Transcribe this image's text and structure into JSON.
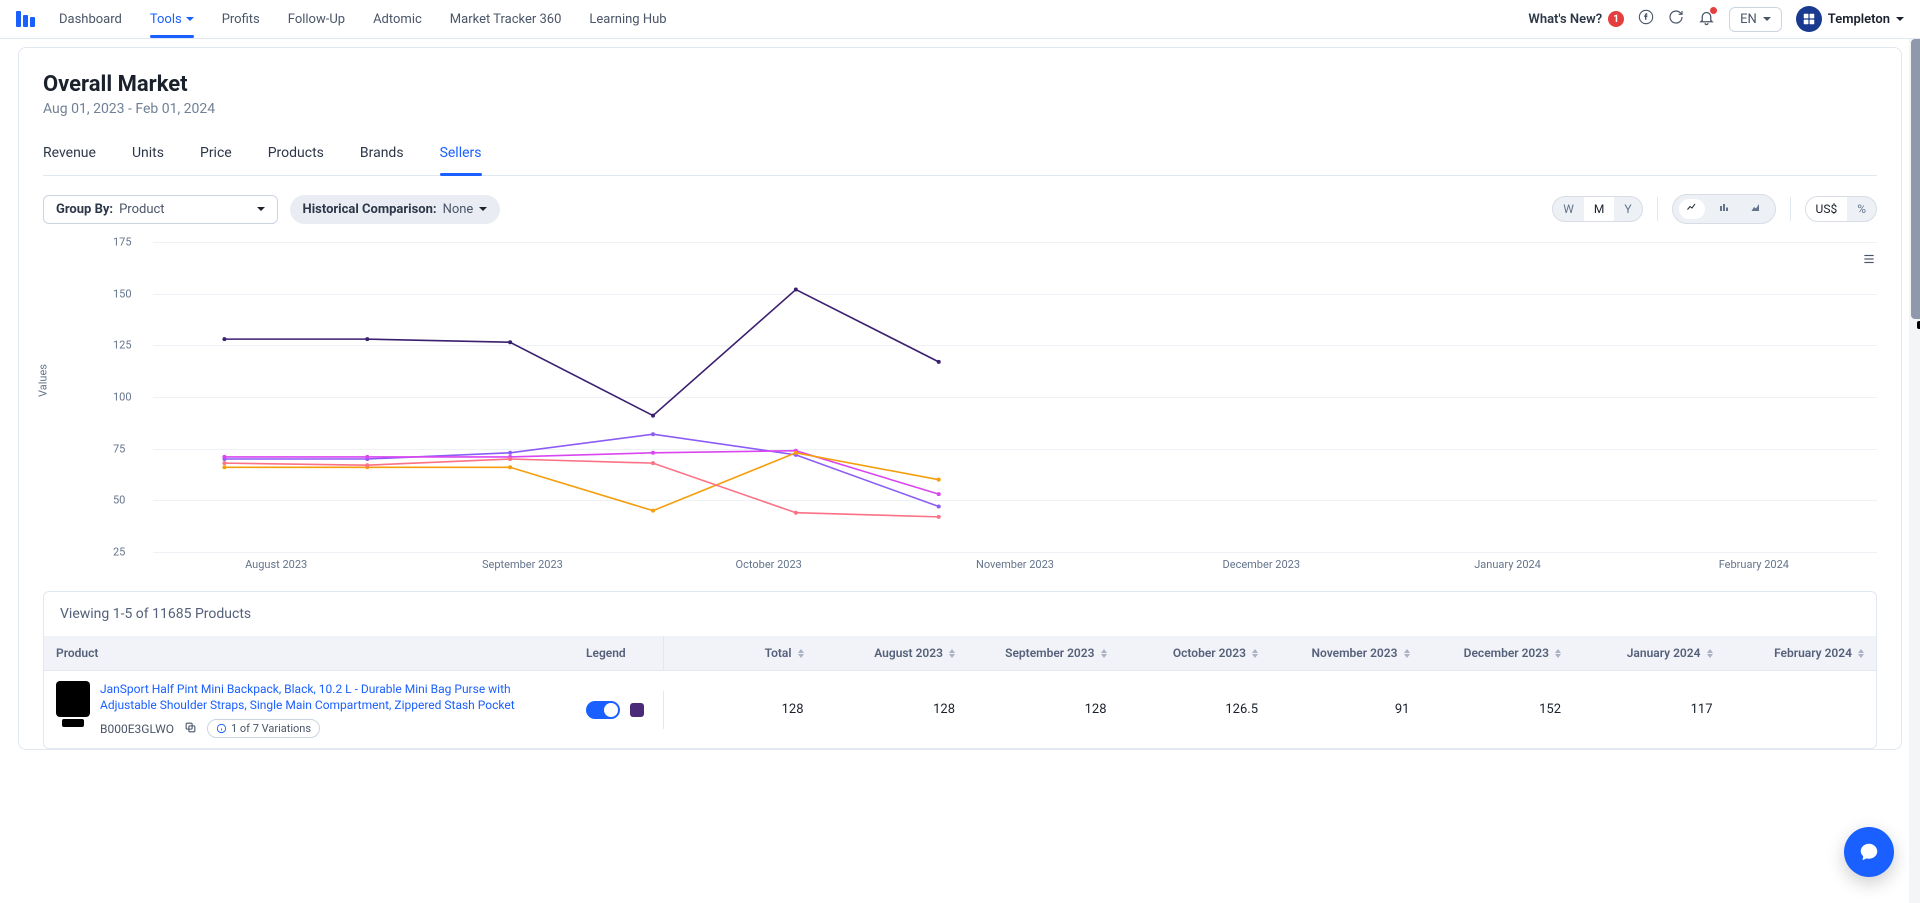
{
  "nav": {
    "items": [
      "Dashboard",
      "Tools",
      "Profits",
      "Follow-Up",
      "Adtomic",
      "Market Tracker 360",
      "Learning Hub"
    ],
    "activeIndex": 1
  },
  "header_right": {
    "whats_new": "What's New?",
    "whats_new_count": "1",
    "lang": "EN",
    "user": "Templeton"
  },
  "page": {
    "title": "Overall Market",
    "daterange": "Aug 01, 2023 - Feb 01, 2024"
  },
  "tabs": {
    "items": [
      "Revenue",
      "Units",
      "Price",
      "Products",
      "Brands",
      "Sellers"
    ],
    "activeIndex": 5
  },
  "controls": {
    "group_by_label": "Group By:",
    "group_by_value": "Product",
    "hist_label": "Historical Comparison:",
    "hist_value": "None",
    "period": {
      "options": [
        "W",
        "M",
        "Y"
      ],
      "activeIndex": 1
    },
    "unit": {
      "options": [
        "US$",
        "%"
      ],
      "activeIndex": 0
    }
  },
  "chart": {
    "ylabel": "Values",
    "ylim": [
      25,
      175
    ],
    "ytick_step": 25,
    "xcats": [
      "August 2023",
      "September 2023",
      "October 2023",
      "November 2023",
      "December 2023",
      "January 2024",
      "February 2024"
    ],
    "background": "#ffffff",
    "grid_color": "#eef1f6",
    "line_width": 1.6,
    "series": [
      {
        "name": "s1",
        "values": [
          128,
          128,
          126.5,
          91,
          152,
          117,
          null
        ],
        "color": "#3b1f70"
      },
      {
        "name": "s2",
        "values": [
          70,
          70,
          73,
          82,
          72,
          47,
          null
        ],
        "color": "#8b5cf6"
      },
      {
        "name": "s3",
        "values": [
          71,
          71,
          71,
          73,
          74,
          53,
          null
        ],
        "color": "#d946ef"
      },
      {
        "name": "s4",
        "values": [
          66,
          66,
          66,
          45,
          73,
          60,
          null
        ],
        "color": "#f59e0b"
      },
      {
        "name": "s5",
        "values": [
          68,
          67,
          70,
          68,
          44,
          42,
          null
        ],
        "color": "#fb7185"
      }
    ]
  },
  "table": {
    "caption": "Viewing 1-5 of 11685 Products",
    "columns": [
      "Product",
      "Legend",
      "Total",
      "August 2023",
      "September 2023",
      "October 2023",
      "November 2023",
      "December 2023",
      "January 2024",
      "February 2024"
    ],
    "row": {
      "title": "JanSport Half Pint Mini Backpack, Black, 10.2 L - Durable Mini Bag Purse with Adjustable Shoulder Straps, Single Main Compartment, Zippered Stash Pocket",
      "asin": "B000E3GLWO",
      "variations": "1 of 7 Variations",
      "legend_color": "#4c2a7a",
      "values": [
        "128",
        "128",
        "128",
        "126.5",
        "91",
        "152",
        "117",
        ""
      ]
    }
  }
}
